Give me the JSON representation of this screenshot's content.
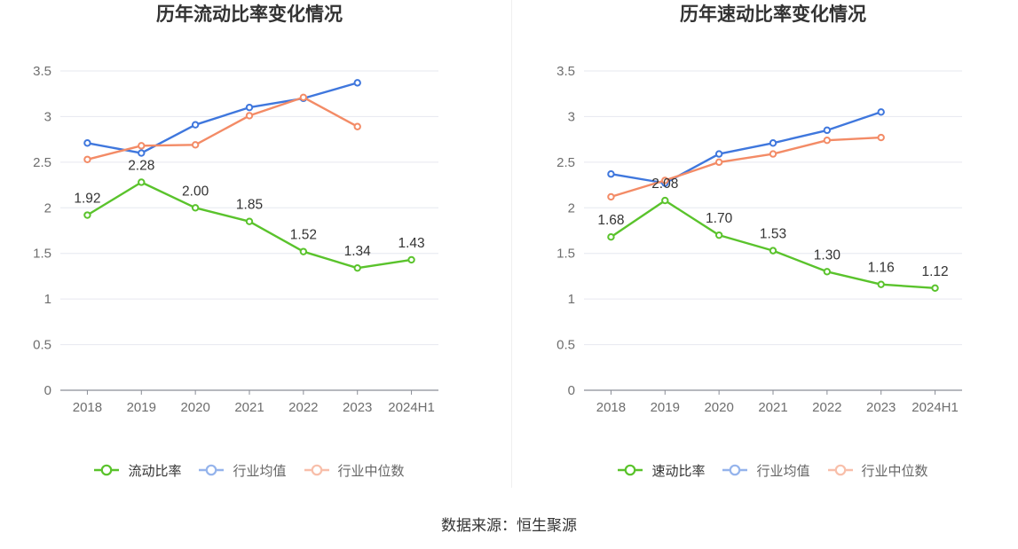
{
  "source": "数据来源：恒生聚源",
  "chart_data": [
    {
      "type": "line",
      "title": "历年流动比率变化情况",
      "xlabel": "",
      "ylabel": "",
      "categories": [
        "2018",
        "2019",
        "2020",
        "2021",
        "2022",
        "2023",
        "2024H1"
      ],
      "ylim": [
        0,
        3.5
      ],
      "yticks": [
        "0",
        "0.5",
        "1",
        "1.5",
        "2",
        "2.5",
        "3",
        "3.5"
      ],
      "grid": true,
      "legend": "bottom",
      "series": [
        {
          "name": "流动比率",
          "color": "#5ac32c",
          "values": [
            1.92,
            2.28,
            2.0,
            1.85,
            1.52,
            1.34,
            1.43
          ],
          "data_labels": [
            "1.92",
            "2.28",
            "2.00",
            "1.85",
            "1.52",
            "1.34",
            "1.43"
          ]
        },
        {
          "name": "行业均值",
          "color": "#3f77dd",
          "values": [
            2.71,
            2.6,
            2.91,
            3.1,
            3.2,
            3.37,
            null
          ]
        },
        {
          "name": "行业中位数",
          "color": "#f38b66",
          "values": [
            2.53,
            2.68,
            2.69,
            3.01,
            3.21,
            2.89,
            null
          ]
        }
      ]
    },
    {
      "type": "line",
      "title": "历年速动比率变化情况",
      "xlabel": "",
      "ylabel": "",
      "categories": [
        "2018",
        "2019",
        "2020",
        "2021",
        "2022",
        "2023",
        "2024H1"
      ],
      "ylim": [
        0,
        3.5
      ],
      "yticks": [
        "0",
        "0.5",
        "1",
        "1.5",
        "2",
        "2.5",
        "3",
        "3.5"
      ],
      "grid": true,
      "legend": "bottom",
      "series": [
        {
          "name": "速动比率",
          "color": "#5ac32c",
          "values": [
            1.68,
            2.08,
            1.7,
            1.53,
            1.3,
            1.16,
            1.12
          ],
          "data_labels": [
            "1.68",
            "2.08",
            "1.70",
            "1.53",
            "1.30",
            "1.16",
            "1.12"
          ]
        },
        {
          "name": "行业均值",
          "color": "#3f77dd",
          "values": [
            2.37,
            2.27,
            2.59,
            2.71,
            2.85,
            3.05,
            null
          ]
        },
        {
          "name": "行业中位数",
          "color": "#f38b66",
          "values": [
            2.12,
            2.3,
            2.5,
            2.59,
            2.74,
            2.77,
            null
          ]
        }
      ]
    }
  ]
}
